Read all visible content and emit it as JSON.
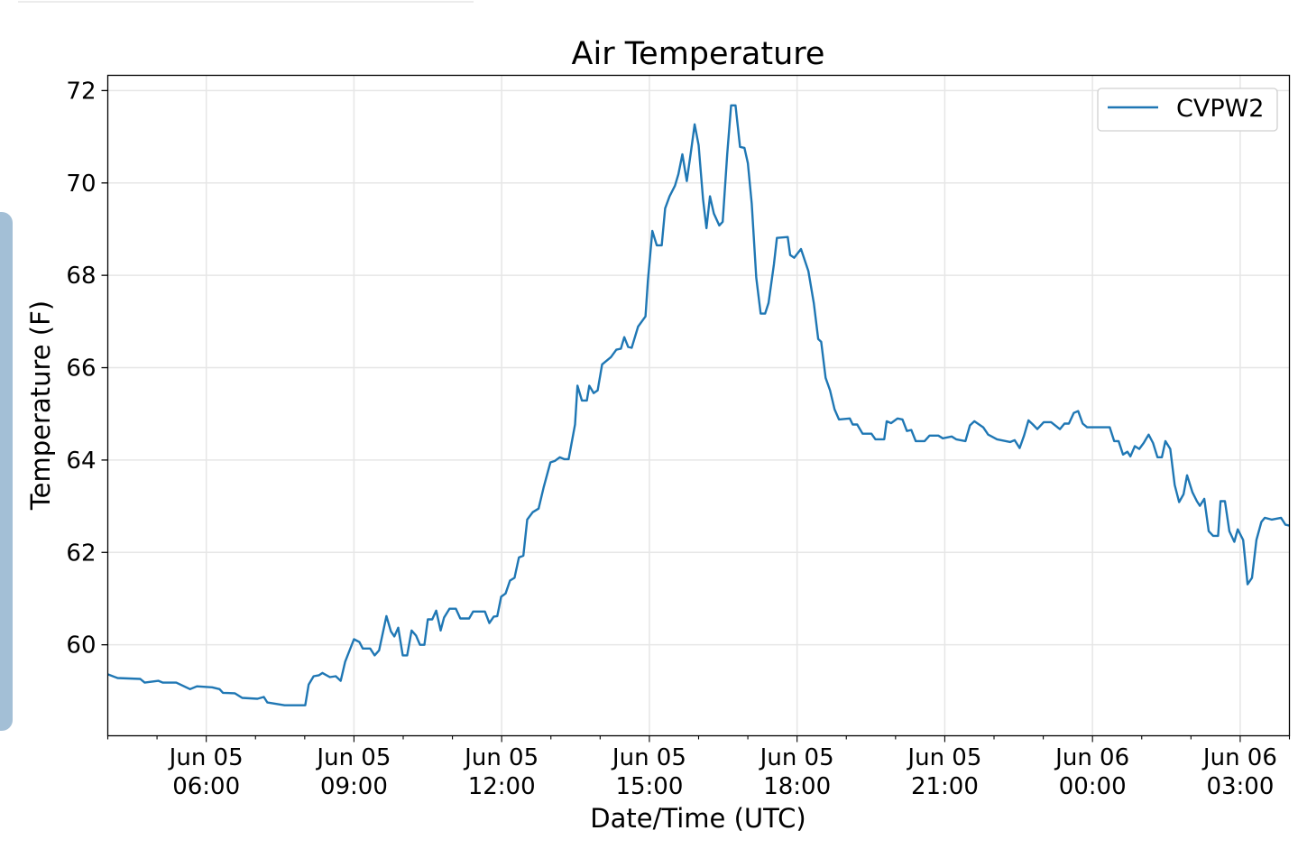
{
  "chart_data": {
    "type": "line",
    "title": "Air Temperature",
    "xlabel": "Date/Time (UTC)",
    "ylabel": "Temperature (F)",
    "x_units": "hours since Jun 05 00:00 UTC",
    "xlim": [
      4,
      28
    ],
    "ylim": [
      58.03,
      72.33
    ],
    "grid": true,
    "legend_position": "top-right",
    "y_ticks": [
      60,
      62,
      64,
      66,
      68,
      70,
      72
    ],
    "x_ticks": [
      {
        "value": 6,
        "line1": "Jun 05",
        "line2": "06:00"
      },
      {
        "value": 9,
        "line1": "Jun 05",
        "line2": "09:00"
      },
      {
        "value": 12,
        "line1": "Jun 05",
        "line2": "12:00"
      },
      {
        "value": 15,
        "line1": "Jun 05",
        "line2": "15:00"
      },
      {
        "value": 18,
        "line1": "Jun 05",
        "line2": "18:00"
      },
      {
        "value": 21,
        "line1": "Jun 05",
        "line2": "21:00"
      },
      {
        "value": 24,
        "line1": "Jun 06",
        "line2": "00:00"
      },
      {
        "value": 27,
        "line1": "Jun 06",
        "line2": "03:00"
      }
    ],
    "series": [
      {
        "name": "CVPW2",
        "color": "#1f77b4",
        "x": [
          4.0,
          4.2,
          4.66,
          4.75,
          5.03,
          5.12,
          5.39,
          5.67,
          5.81,
          6.12,
          6.27,
          6.34,
          6.58,
          6.73,
          7.04,
          7.17,
          7.24,
          7.59,
          8.01,
          8.08,
          8.18,
          8.29,
          8.36,
          8.51,
          8.63,
          8.73,
          8.82,
          9.0,
          9.11,
          9.18,
          9.33,
          9.42,
          9.51,
          9.66,
          9.75,
          9.82,
          9.9,
          9.99,
          10.08,
          10.17,
          10.26,
          10.34,
          10.43,
          10.5,
          10.59,
          10.67,
          10.76,
          10.83,
          10.94,
          11.07,
          11.16,
          11.34,
          11.42,
          11.66,
          11.75,
          11.84,
          11.91,
          11.99,
          12.08,
          12.17,
          12.26,
          12.35,
          12.44,
          12.52,
          12.63,
          12.75,
          12.85,
          12.99,
          13.08,
          13.18,
          13.27,
          13.36,
          13.49,
          13.54,
          13.63,
          13.73,
          13.78,
          13.87,
          13.95,
          14.04,
          14.22,
          14.33,
          14.42,
          14.49,
          14.57,
          14.64,
          14.77,
          14.92,
          14.97,
          15.06,
          15.15,
          15.25,
          15.32,
          15.41,
          15.52,
          15.59,
          15.67,
          15.76,
          15.85,
          15.92,
          16.0,
          16.09,
          16.16,
          16.23,
          16.31,
          16.42,
          16.49,
          16.58,
          16.66,
          16.75,
          16.84,
          16.93,
          17.0,
          17.08,
          17.17,
          17.26,
          17.35,
          17.42,
          17.53,
          17.59,
          17.81,
          17.86,
          17.94,
          18.08,
          18.23,
          18.34,
          18.43,
          18.49,
          18.58,
          18.67,
          18.76,
          18.85,
          19.07,
          19.13,
          19.22,
          19.33,
          19.51,
          19.59,
          19.77,
          19.82,
          19.91,
          20.04,
          20.14,
          20.23,
          20.32,
          20.41,
          20.59,
          20.69,
          20.87,
          20.96,
          21.14,
          21.23,
          21.42,
          21.51,
          21.6,
          21.78,
          21.88,
          22.06,
          22.33,
          22.42,
          22.52,
          22.61,
          22.7,
          22.79,
          22.88,
          23.01,
          23.16,
          23.29,
          23.34,
          23.43,
          23.52,
          23.62,
          23.71,
          23.8,
          23.89,
          24.35,
          24.44,
          24.53,
          24.62,
          24.71,
          24.77,
          24.86,
          24.95,
          25.04,
          25.14,
          25.23,
          25.32,
          25.41,
          25.48,
          25.58,
          25.67,
          25.76,
          25.85,
          25.92,
          26.03,
          26.12,
          26.18,
          26.27,
          26.36,
          26.45,
          26.55,
          26.6,
          26.69,
          26.78,
          26.88,
          26.95,
          27.06,
          27.15,
          27.24,
          27.33,
          27.43,
          27.5,
          27.64,
          27.83,
          27.92,
          28.0
        ],
        "y": [
          59.36,
          59.28,
          59.26,
          59.18,
          59.22,
          59.18,
          59.18,
          59.04,
          59.1,
          59.08,
          59.04,
          58.96,
          58.95,
          58.85,
          58.83,
          58.87,
          58.75,
          58.69,
          58.69,
          59.14,
          59.32,
          59.34,
          59.39,
          59.3,
          59.32,
          59.22,
          59.63,
          60.12,
          60.06,
          59.92,
          59.92,
          59.77,
          59.88,
          60.62,
          60.29,
          60.18,
          60.37,
          59.77,
          59.77,
          60.31,
          60.2,
          60.0,
          60.0,
          60.55,
          60.55,
          60.74,
          60.31,
          60.59,
          60.78,
          60.78,
          60.57,
          60.57,
          60.72,
          60.72,
          60.47,
          60.61,
          60.62,
          61.04,
          61.11,
          61.39,
          61.45,
          61.89,
          61.93,
          62.71,
          62.87,
          62.95,
          63.4,
          63.95,
          63.98,
          64.06,
          64.02,
          64.02,
          64.77,
          65.61,
          65.29,
          65.29,
          65.61,
          65.45,
          65.51,
          66.07,
          66.23,
          66.39,
          66.41,
          66.66,
          66.45,
          66.43,
          66.89,
          67.11,
          67.89,
          68.96,
          68.65,
          68.65,
          69.45,
          69.71,
          69.94,
          70.19,
          70.62,
          70.04,
          70.72,
          71.27,
          70.82,
          69.65,
          69.02,
          69.71,
          69.34,
          69.08,
          69.16,
          70.62,
          71.68,
          71.68,
          70.78,
          70.76,
          70.43,
          69.55,
          67.95,
          67.17,
          67.17,
          67.4,
          68.24,
          68.81,
          68.83,
          68.44,
          68.38,
          68.57,
          68.09,
          67.4,
          66.62,
          66.56,
          65.78,
          65.51,
          65.1,
          64.88,
          64.9,
          64.77,
          64.77,
          64.57,
          64.57,
          64.45,
          64.45,
          64.84,
          64.8,
          64.9,
          64.88,
          64.63,
          64.65,
          64.41,
          64.41,
          64.53,
          64.53,
          64.47,
          64.51,
          64.45,
          64.41,
          64.75,
          64.84,
          64.71,
          64.55,
          64.45,
          64.39,
          64.43,
          64.26,
          64.53,
          64.86,
          64.77,
          64.67,
          64.82,
          64.82,
          64.71,
          64.67,
          64.79,
          64.79,
          65.02,
          65.06,
          64.79,
          64.71,
          64.71,
          64.41,
          64.41,
          64.12,
          64.18,
          64.08,
          64.3,
          64.24,
          64.37,
          64.55,
          64.37,
          64.06,
          64.06,
          64.41,
          64.24,
          63.46,
          63.09,
          63.26,
          63.67,
          63.3,
          63.11,
          63.01,
          63.16,
          62.46,
          62.36,
          62.36,
          63.11,
          63.11,
          62.46,
          62.23,
          62.5,
          62.27,
          61.31,
          61.45,
          62.27,
          62.66,
          62.75,
          62.71,
          62.75,
          62.6,
          62.58
        ]
      }
    ]
  }
}
